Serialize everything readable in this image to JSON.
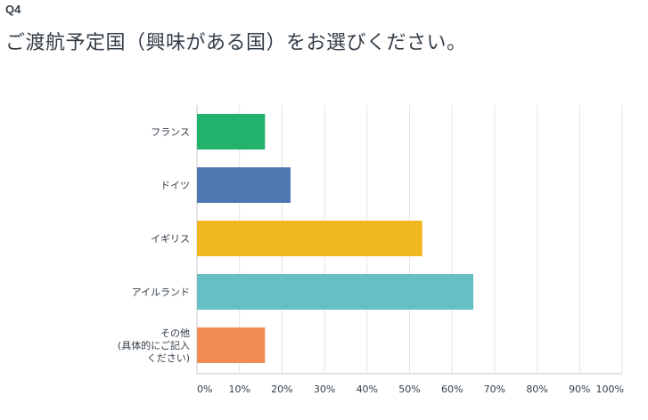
{
  "question": {
    "number": "Q4",
    "text": "ご渡航予定国（興味がある国）をお選びください。"
  },
  "chart_data": {
    "type": "bar",
    "orientation": "horizontal",
    "categories": [
      [
        "フランス"
      ],
      [
        "ドイツ"
      ],
      [
        "イギリス"
      ],
      [
        "アイルランド"
      ],
      [
        "その他",
        "(具体的にご記入",
        "ください)"
      ]
    ],
    "values": [
      16,
      22,
      53,
      65,
      16
    ],
    "colors": [
      "#21b36c",
      "#4d77b0",
      "#f0b81e",
      "#66bfc4",
      "#f28a55"
    ],
    "x_ticks": [
      "0%",
      "10%",
      "20%",
      "30%",
      "40%",
      "50%",
      "60%",
      "70%",
      "80%",
      "90%",
      "100%"
    ],
    "xlim": [
      0,
      100
    ],
    "grid": true,
    "grid_color": "#e6e6e6",
    "axis_color": "#c8c8c8"
  }
}
